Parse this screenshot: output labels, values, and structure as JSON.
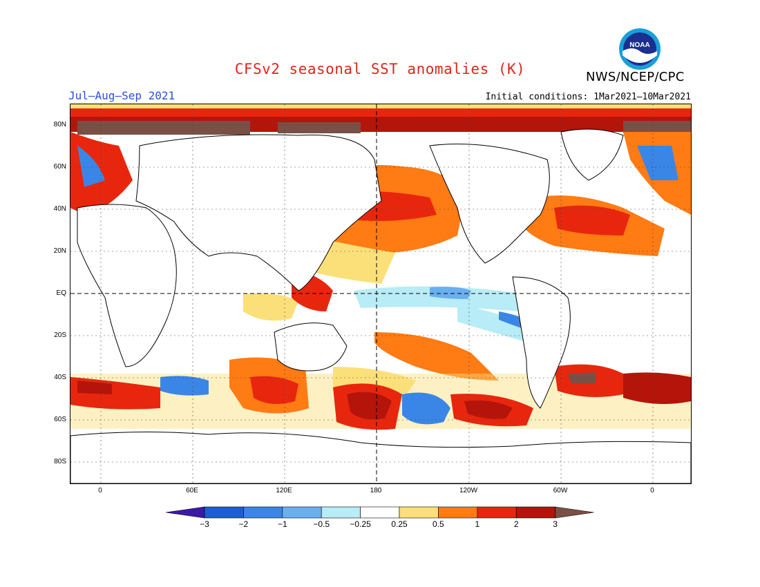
{
  "title": "CFSv2 seasonal SST anomalies (K)",
  "organization": "NWS/NCEP/CPC",
  "logo_text": "NOAA",
  "season_label": "Jul–Aug–Sep 2021",
  "initial_conditions": "Initial conditions: 1Mar2021–10Mar2021",
  "lat_labels": [
    "80N",
    "60N",
    "40N",
    "20N",
    "EQ",
    "20S",
    "40S",
    "60S",
    "80S"
  ],
  "lon_labels": [
    "0",
    "60E",
    "120E",
    "180",
    "120W",
    "60W",
    "0"
  ],
  "colorbar": {
    "labels": [
      "−3",
      "−2",
      "−1",
      "−0.5",
      "−0.25",
      "0.25",
      "0.5",
      "1",
      "2",
      "3"
    ],
    "colors": [
      "#3b1aa8",
      "#1a5fcf",
      "#3a86e6",
      "#6aaff0",
      "#b8ecf6",
      "#ffffff",
      "#fbe07a",
      "#ff7b14",
      "#e8260e",
      "#b5140a",
      "#7a4f45"
    ]
  }
}
